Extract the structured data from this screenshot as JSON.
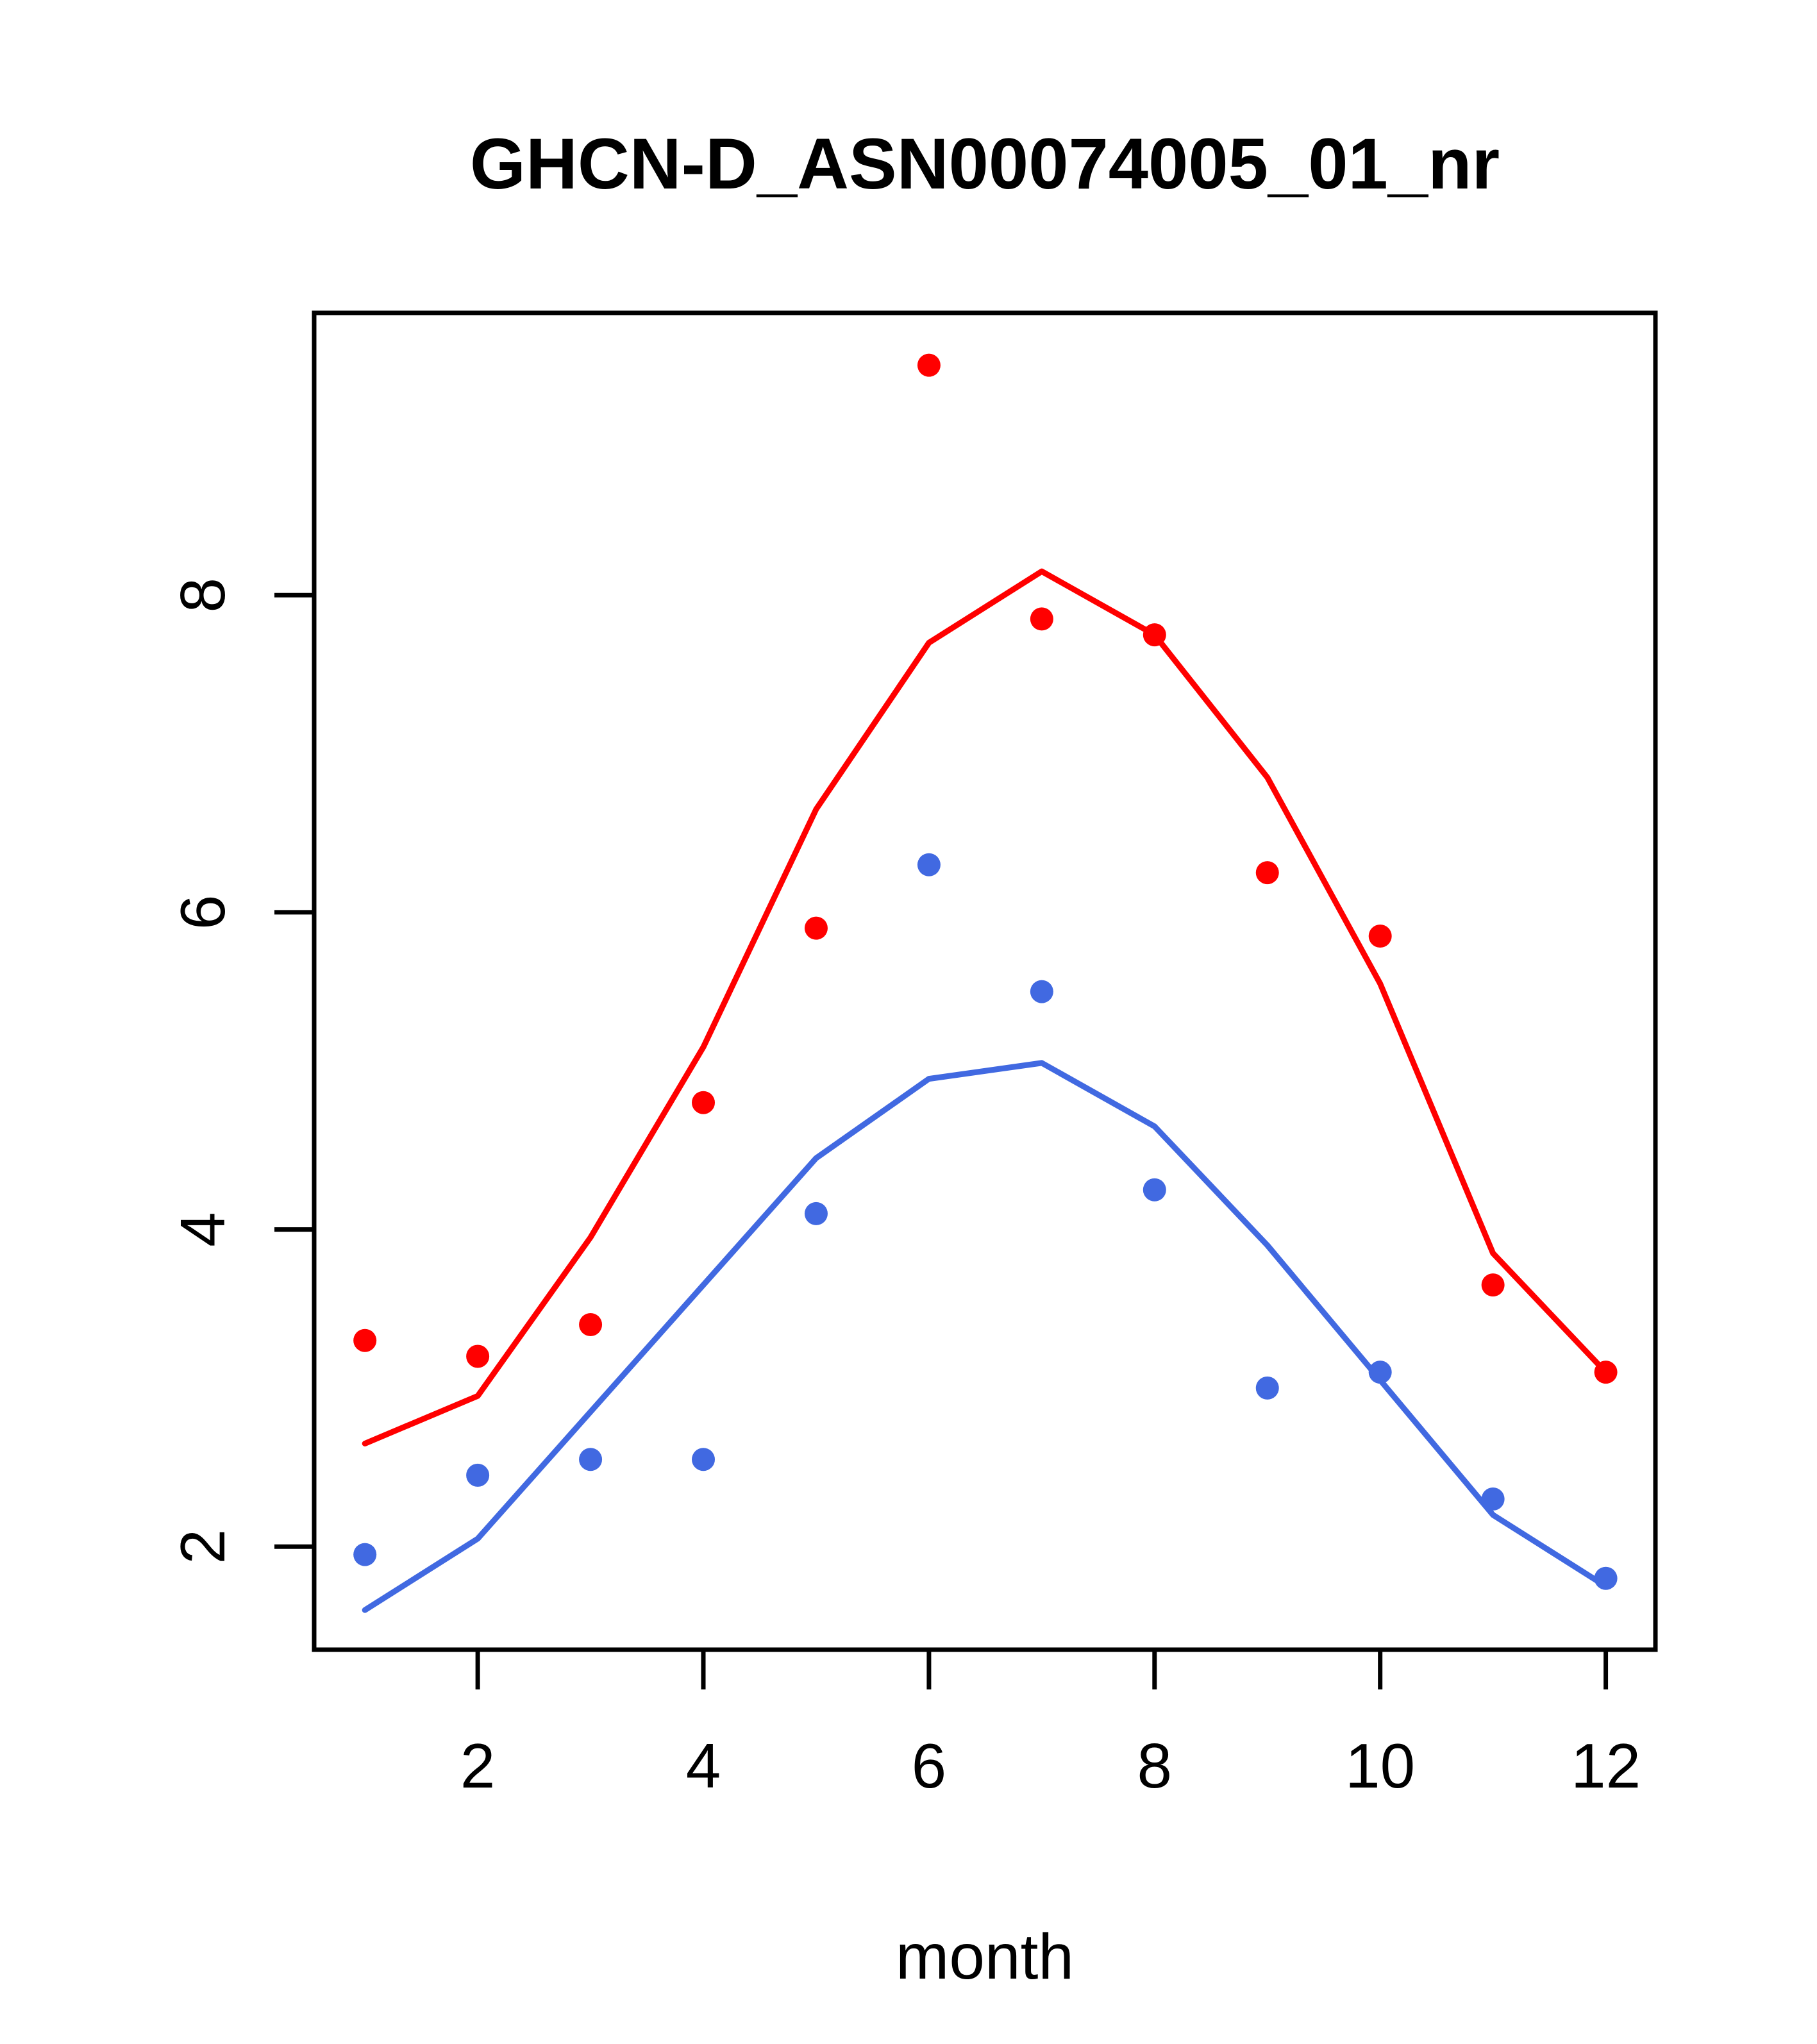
{
  "figure": {
    "title": "GHCN-D_ASN00074005_01_nr",
    "x_axis_label": "month"
  },
  "chart_data": {
    "type": "scatter",
    "title": "GHCN-D_ASN00074005_01_nr",
    "xlabel": "month",
    "ylabel": "",
    "x": [
      1,
      2,
      3,
      4,
      5,
      6,
      7,
      8,
      9,
      10,
      11,
      12
    ],
    "xlim": [
      0.55,
      12.44
    ],
    "ylim": [
      1.35,
      9.78
    ],
    "xticks": [
      2,
      4,
      6,
      8,
      10,
      12
    ],
    "yticks": [
      2,
      4,
      6,
      8
    ],
    "grid": false,
    "legend_position": "none",
    "background_color": "#FFFFFF",
    "axis_color": "#000000",
    "series": [
      {
        "name": "red-smooth-line",
        "type": "line",
        "color": "#FF0000",
        "values": [
          2.65,
          2.95,
          3.95,
          5.15,
          6.65,
          7.7,
          8.15,
          7.75,
          6.85,
          5.55,
          3.85,
          3.1
        ]
      },
      {
        "name": "blue-smooth-line",
        "type": "line",
        "color": "#4169E1",
        "values": [
          1.6,
          2.05,
          2.85,
          3.65,
          4.45,
          4.95,
          5.05,
          4.65,
          3.9,
          3.05,
          2.2,
          1.75
        ]
      },
      {
        "name": "red-points",
        "type": "points",
        "marker": "filled-circle",
        "color": "#FF0000",
        "values": [
          3.3,
          3.2,
          3.4,
          4.8,
          5.9,
          9.45,
          7.85,
          7.75,
          6.25,
          5.85,
          3.65,
          3.1
        ]
      },
      {
        "name": "blue-points",
        "type": "points",
        "marker": "filled-circle",
        "color": "#4169E1",
        "values": [
          1.95,
          2.45,
          2.55,
          2.55,
          4.1,
          6.3,
          5.5,
          4.25,
          3.0,
          3.1,
          2.3,
          1.8
        ]
      }
    ]
  }
}
